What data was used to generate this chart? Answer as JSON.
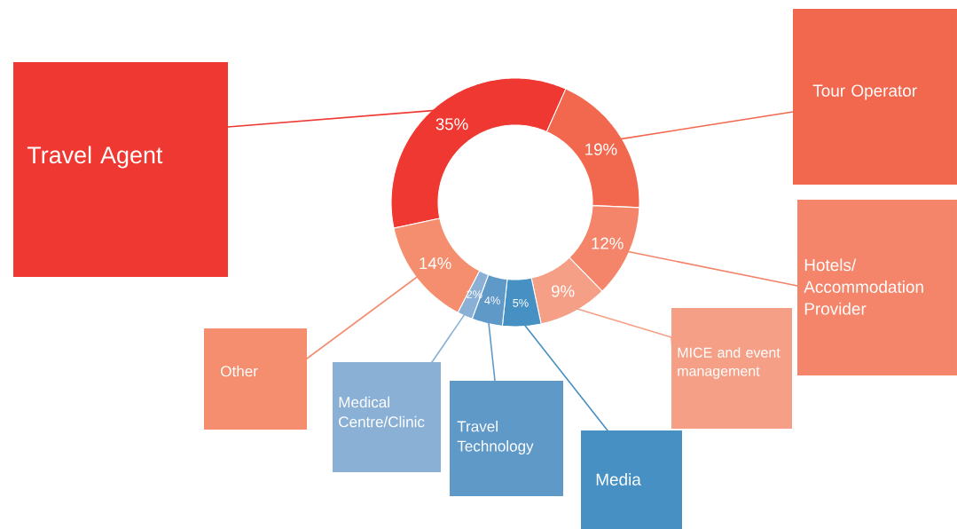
{
  "chart_data": {
    "type": "donut",
    "categories": [
      "Travel Agent",
      "Tour Operator",
      "Hotels/ Accommodation Provider",
      "MICE and event management",
      "Media",
      "Travel Technology",
      "Medical Centre/Clinic",
      "Other"
    ],
    "values": [
      35,
      19,
      12,
      9,
      5,
      4,
      2,
      14
    ],
    "value_labels": [
      "35%",
      "19%",
      "12%",
      "9%",
      "5%",
      "4%",
      "2%",
      "14%"
    ],
    "colors": [
      "#ee3831",
      "#f1684e",
      "#f4856a",
      "#f5a086",
      "#4690c3",
      "#5f99c8",
      "#8ab0d6",
      "#f48e6e"
    ]
  }
}
